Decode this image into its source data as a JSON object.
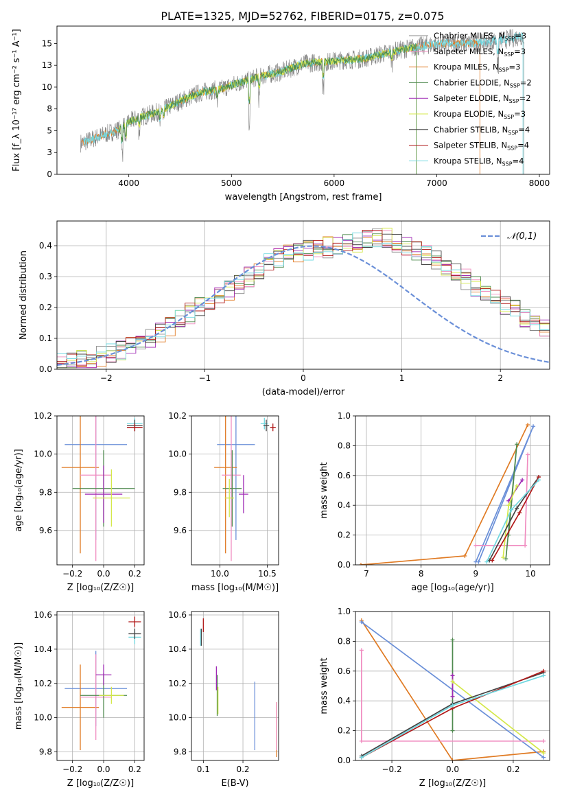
{
  "title": "PLATE=1325, MJD=52762, FIBERID=0175, z=0.075",
  "colors": {
    "Chabrier MILES": "#888888",
    "Salpeter MILES": "#f08cc0",
    "Kroupa MILES": "#e07b24",
    "Chabrier ELODIE": "#4f8a4f",
    "Salpeter ELODIE": "#a02bb5",
    "Kroupa ELODIE": "#d4e84a",
    "Chabrier STELIB": "#444444",
    "Salpeter STELIB": "#b01818",
    "Kroupa STELIB": "#70d8e0",
    "Chabrier MILES alt": "#6a8fd8"
  },
  "chart_data": [
    {
      "id": "spectrum",
      "type": "line",
      "xlabel": "wavelength [Angstrom, rest frame]",
      "ylabel": "Flux [f_λ 10⁻¹⁷ erg cm⁻² s⁻¹ A⁻¹]",
      "xlim": [
        3300,
        8100
      ],
      "ylim": [
        0,
        17
      ],
      "xticks": [
        4000,
        5000,
        6000,
        7000,
        8000
      ],
      "yticks": [
        0.0,
        2.5,
        5.0,
        7.5,
        10.0,
        12.5,
        15.0
      ],
      "legend": [
        {
          "label": "Chabrier MILES, N",
          "sub": "SSP",
          "tail": "=3",
          "color": "#888888"
        },
        {
          "label": "Salpeter MILES, N",
          "sub": "SSP",
          "tail": "=3",
          "color": "#f08cc0"
        },
        {
          "label": "Kroupa MILES, N",
          "sub": "SSP",
          "tail": "=3",
          "color": "#e07b24"
        },
        {
          "label": "Chabrier ELODIE, N",
          "sub": "SSP",
          "tail": "=2",
          "color": "#4f8a4f"
        },
        {
          "label": "Salpeter ELODIE, N",
          "sub": "SSP",
          "tail": "=2",
          "color": "#a02bb5"
        },
        {
          "label": "Kroupa ELODIE, N",
          "sub": "SSP",
          "tail": "=3",
          "color": "#d4e84a"
        },
        {
          "label": "Chabrier STELIB, N",
          "sub": "SSP",
          "tail": "=4",
          "color": "#444444"
        },
        {
          "label": "Salpeter STELIB, N",
          "sub": "SSP",
          "tail": "=4",
          "color": "#b01818"
        },
        {
          "label": "Kroupa STELIB, N",
          "sub": "SSP",
          "tail": "=4",
          "color": "#70d8e0"
        }
      ],
      "legend_position": "upper-right",
      "series": [
        {
          "color": "#888888",
          "wmin": 3530,
          "wmax": 7850,
          "noise": 1.0
        },
        {
          "color": "#e07b24",
          "wmin": 3540,
          "wmax": 7420,
          "noise": 0.4
        },
        {
          "color": "#70d8e0",
          "wmin": 3560,
          "wmax": 7840,
          "noise": 0.45
        },
        {
          "color": "#d4e84a",
          "wmin": 3900,
          "wmax": 6800,
          "noise": 0.4
        },
        {
          "color": "#4f8a4f",
          "wmin": 3900,
          "wmax": 6800,
          "noise": 0.4
        }
      ],
      "continuum": [
        [
          3550,
          3.6
        ],
        [
          3700,
          4.3
        ],
        [
          3900,
          5.1
        ],
        [
          4000,
          6.0
        ],
        [
          4100,
          6.5
        ],
        [
          4300,
          7.2
        ],
        [
          4500,
          8.4
        ],
        [
          4700,
          9.4
        ],
        [
          4900,
          9.8
        ],
        [
          5100,
          10.6
        ],
        [
          5300,
          11.3
        ],
        [
          5500,
          11.8
        ],
        [
          5700,
          12.7
        ],
        [
          5900,
          12.9
        ],
        [
          6100,
          13.1
        ],
        [
          6300,
          13.3
        ],
        [
          6500,
          13.9
        ],
        [
          6700,
          14.4
        ],
        [
          6900,
          14.8
        ],
        [
          7100,
          15.0
        ],
        [
          7300,
          15.0
        ],
        [
          7500,
          15.2
        ],
        [
          7700,
          15.5
        ],
        [
          7850,
          15.9
        ]
      ],
      "absorption_lines": [
        [
          3934,
          3.0
        ],
        [
          3969,
          2.6
        ],
        [
          4102,
          1.5
        ],
        [
          4304,
          1.6
        ],
        [
          4340,
          1.3
        ],
        [
          4861,
          1.5
        ],
        [
          5175,
          4.8
        ],
        [
          5270,
          2.5
        ],
        [
          5895,
          3.0
        ],
        [
          6563,
          1.5
        ],
        [
          7594,
          3.0
        ]
      ]
    },
    {
      "id": "residual-histogram",
      "type": "histogram",
      "xlabel": "(data-model)/error",
      "ylabel": "Normed distribution",
      "xlim": [
        -2.5,
        2.5
      ],
      "ylim": [
        0,
        0.48
      ],
      "xticks": [
        -2,
        -1,
        0,
        1,
        2
      ],
      "yticks": [
        0.0,
        0.1,
        0.2,
        0.3,
        0.4
      ],
      "bin_width": 0.1,
      "bin_start": -2.5,
      "base_values": [
        0.02,
        0.025,
        0.03,
        0.034,
        0.04,
        0.05,
        0.06,
        0.07,
        0.085,
        0.1,
        0.12,
        0.14,
        0.16,
        0.18,
        0.2,
        0.22,
        0.235,
        0.255,
        0.28,
        0.3,
        0.32,
        0.34,
        0.36,
        0.37,
        0.38,
        0.385,
        0.39,
        0.395,
        0.4,
        0.405,
        0.41,
        0.42,
        0.43,
        0.425,
        0.41,
        0.395,
        0.38,
        0.37,
        0.35,
        0.33,
        0.31,
        0.29,
        0.27,
        0.25,
        0.23,
        0.21,
        0.19,
        0.165,
        0.145,
        0.125,
        0.105,
        0.09,
        0.075,
        0.065,
        0.055,
        0.045,
        0.04,
        0.033,
        0.028,
        0.024
      ],
      "series_colors": [
        "#888888",
        "#f08cc0",
        "#e07b24",
        "#4f8a4f",
        "#a02bb5",
        "#d4e84a",
        "#444444",
        "#b01818",
        "#70d8e0"
      ],
      "gaussian": {
        "label": "𝒩(0,1)",
        "mean": 0.1,
        "sigma": 1.0,
        "color": "#6a8fd8"
      },
      "legend_position": "upper-right"
    },
    {
      "id": "age-vs-Z",
      "type": "errorbar",
      "xlabel": "Z [log₁₀(Z/Z☉)]",
      "ylabel": "age  [log₁₀(age/yr)]",
      "xlim": [
        -0.3,
        0.26
      ],
      "ylim": [
        9.42,
        10.2
      ],
      "xticks": [
        -0.2,
        0.0,
        0.2
      ],
      "yticks": [
        9.6,
        9.8,
        10.0,
        10.2
      ],
      "points": [
        {
          "x": -0.05,
          "y": 10.05,
          "xerr": 0.2,
          "yerr": 0.5,
          "color": "#6a8fd8"
        },
        {
          "x": -0.15,
          "y": 9.93,
          "xerr": 0.12,
          "yerr": 0.45,
          "color": "#e07b24"
        },
        {
          "x": -0.05,
          "y": 9.89,
          "xerr": 0.1,
          "yerr": 0.45,
          "color": "#f08cc0"
        },
        {
          "x": 0.0,
          "y": 9.82,
          "xerr": 0.2,
          "yerr": 0.2,
          "color": "#4f8a4f"
        },
        {
          "x": 0.0,
          "y": 9.79,
          "xerr": 0.12,
          "yerr": 0.15,
          "color": "#a02bb5"
        },
        {
          "x": 0.05,
          "y": 9.77,
          "xerr": 0.12,
          "yerr": 0.15,
          "color": "#d4e84a"
        },
        {
          "x": 0.2,
          "y": 10.16,
          "xerr": 0.05,
          "yerr": 0.03,
          "color": "#70d8e0"
        },
        {
          "x": 0.2,
          "y": 10.15,
          "xerr": 0.05,
          "yerr": 0.03,
          "color": "#444444"
        },
        {
          "x": 0.2,
          "y": 10.14,
          "xerr": 0.05,
          "yerr": 0.02,
          "color": "#b01818"
        }
      ]
    },
    {
      "id": "age-vs-mass",
      "type": "errorbar",
      "xlabel": "mass [log₁₀(M/M☉)]",
      "ylabel": "",
      "xlim": [
        9.7,
        10.62
      ],
      "ylim": [
        9.42,
        10.2
      ],
      "xticks": [
        10.0,
        10.5
      ],
      "yticks": [
        9.6,
        9.8,
        10.0,
        10.2
      ],
      "points": [
        {
          "x": 10.17,
          "y": 10.05,
          "xerr": 0.2,
          "yerr": 0.5,
          "color": "#6a8fd8"
        },
        {
          "x": 10.06,
          "y": 9.93,
          "xerr": 0.12,
          "yerr": 0.45,
          "color": "#e07b24"
        },
        {
          "x": 10.12,
          "y": 9.89,
          "xerr": 0.1,
          "yerr": 0.45,
          "color": "#f08cc0"
        },
        {
          "x": 10.13,
          "y": 9.82,
          "xerr": 0.1,
          "yerr": 0.2,
          "color": "#4f8a4f"
        },
        {
          "x": 10.25,
          "y": 9.79,
          "xerr": 0.05,
          "yerr": 0.1,
          "color": "#a02bb5"
        },
        {
          "x": 10.1,
          "y": 9.77,
          "xerr": 0.05,
          "yerr": 0.1,
          "color": "#d4e84a"
        },
        {
          "x": 10.47,
          "y": 10.16,
          "xerr": 0.04,
          "yerr": 0.03,
          "color": "#70d8e0"
        },
        {
          "x": 10.49,
          "y": 10.15,
          "xerr": 0.03,
          "yerr": 0.03,
          "color": "#444444"
        },
        {
          "x": 10.56,
          "y": 10.14,
          "xerr": 0.03,
          "yerr": 0.02,
          "color": "#b01818"
        }
      ]
    },
    {
      "id": "weight-vs-age",
      "type": "line",
      "xlabel": "age  [log₁₀(age/yr)]",
      "ylabel": "mass weight",
      "xlim": [
        6.8,
        10.35
      ],
      "ylim": [
        0,
        1
      ],
      "xticks": [
        7,
        8,
        9,
        10
      ],
      "yticks": [
        0.0,
        0.2,
        0.4,
        0.6,
        0.8,
        1.0
      ],
      "series": [
        {
          "color": "#e07b24",
          "points": [
            [
              6.9,
              0.0
            ],
            [
              8.8,
              0.06
            ],
            [
              9.95,
              0.94
            ]
          ]
        },
        {
          "color": "#6a8fd8",
          "points": [
            [
              9.0,
              0.02
            ],
            [
              10.05,
              0.93
            ],
            [
              9.05,
              0.02
            ]
          ]
        },
        {
          "color": "#f08cc0",
          "points": [
            [
              9.0,
              0.13
            ],
            [
              9.9,
              0.13
            ],
            [
              9.95,
              0.74
            ]
          ]
        },
        {
          "color": "#4f8a4f",
          "points": [
            [
              9.6,
              0.2
            ],
            [
              9.75,
              0.81
            ],
            [
              9.55,
              0.04
            ]
          ]
        },
        {
          "color": "#a02bb5",
          "points": [
            [
              9.6,
              0.43
            ],
            [
              9.85,
              0.57
            ]
          ]
        },
        {
          "color": "#d4e84a",
          "points": [
            [
              9.5,
              0.05
            ],
            [
              9.6,
              0.4
            ],
            [
              9.75,
              0.53
            ]
          ]
        },
        {
          "color": "#444444",
          "points": [
            [
              9.25,
              0.03
            ],
            [
              9.75,
              0.38
            ],
            [
              10.15,
              0.59
            ]
          ]
        },
        {
          "color": "#b01818",
          "points": [
            [
              9.3,
              0.03
            ],
            [
              9.8,
              0.35
            ],
            [
              10.15,
              0.59
            ]
          ]
        },
        {
          "color": "#70d8e0",
          "points": [
            [
              9.2,
              0.02
            ],
            [
              9.65,
              0.37
            ],
            [
              10.15,
              0.57
            ]
          ]
        }
      ]
    },
    {
      "id": "mass-vs-Z",
      "type": "errorbar",
      "xlabel": "Z [log₁₀(Z/Z☉)]",
      "ylabel": "mass [log₁₀(M/M☉)]",
      "xlim": [
        -0.3,
        0.26
      ],
      "ylim": [
        9.75,
        10.62
      ],
      "xticks": [
        -0.2,
        0.0,
        0.2
      ],
      "yticks": [
        9.8,
        10.0,
        10.2,
        10.4,
        10.6
      ],
      "points": [
        {
          "x": -0.05,
          "y": 10.17,
          "xerr": 0.2,
          "yerr": 0.22,
          "color": "#6a8fd8"
        },
        {
          "x": -0.15,
          "y": 10.06,
          "xerr": 0.12,
          "yerr": 0.25,
          "color": "#e07b24"
        },
        {
          "x": -0.05,
          "y": 10.12,
          "xerr": 0.1,
          "yerr": 0.25,
          "color": "#f08cc0"
        },
        {
          "x": 0.0,
          "y": 10.13,
          "xerr": 0.15,
          "yerr": 0.13,
          "color": "#4f8a4f"
        },
        {
          "x": 0.0,
          "y": 10.25,
          "xerr": 0.05,
          "yerr": 0.06,
          "color": "#a02bb5"
        },
        {
          "x": 0.05,
          "y": 10.13,
          "xerr": 0.08,
          "yerr": 0.05,
          "color": "#d4e84a"
        },
        {
          "x": 0.2,
          "y": 10.47,
          "xerr": 0.04,
          "yerr": 0.04,
          "color": "#70d8e0"
        },
        {
          "x": 0.2,
          "y": 10.49,
          "xerr": 0.04,
          "yerr": 0.03,
          "color": "#444444"
        },
        {
          "x": 0.2,
          "y": 10.56,
          "xerr": 0.04,
          "yerr": 0.03,
          "color": "#b01818"
        }
      ]
    },
    {
      "id": "mass-vs-EBV",
      "type": "errorbar",
      "xlabel": "E(B-V)",
      "ylabel": "",
      "xlim": [
        0.07,
        0.29
      ],
      "ylim": [
        9.75,
        10.62
      ],
      "xticks": [
        0.1,
        0.2
      ],
      "yticks": [
        9.8,
        10.0,
        10.2,
        10.4,
        10.6
      ],
      "points": [
        {
          "x": 0.23,
          "y": 10.01,
          "xerr": 0.0,
          "yerr": 0.2,
          "color": "#6a8fd8"
        },
        {
          "x": 0.285,
          "y": 9.93,
          "xerr": 0.0,
          "yerr": 0.16,
          "color": "#e07b24"
        },
        {
          "x": 0.285,
          "y": 9.95,
          "xerr": 0.0,
          "yerr": 0.14,
          "color": "#f08cc0"
        },
        {
          "x": 0.135,
          "y": 10.13,
          "xerr": 0.0,
          "yerr": 0.12,
          "color": "#4f8a4f"
        },
        {
          "x": 0.133,
          "y": 10.23,
          "xerr": 0.0,
          "yerr": 0.07,
          "color": "#a02bb5"
        },
        {
          "x": 0.137,
          "y": 10.1,
          "xerr": 0.0,
          "yerr": 0.08,
          "color": "#d4e84a"
        },
        {
          "x": 0.093,
          "y": 10.47,
          "xerr": 0.0,
          "yerr": 0.05,
          "color": "#70d8e0"
        },
        {
          "x": 0.095,
          "y": 10.47,
          "xerr": 0.0,
          "yerr": 0.05,
          "color": "#444444"
        },
        {
          "x": 0.1,
          "y": 10.54,
          "xerr": 0.0,
          "yerr": 0.04,
          "color": "#b01818"
        }
      ]
    },
    {
      "id": "weight-vs-Z",
      "type": "line",
      "xlabel": "Z [log₁₀(Z/Z☉)]",
      "ylabel": "mass weight",
      "xlim": [
        -0.32,
        0.32
      ],
      "ylim": [
        0,
        1
      ],
      "xticks": [
        -0.2,
        0.0,
        0.2
      ],
      "yticks": [
        0.0,
        0.2,
        0.4,
        0.6,
        0.8,
        1.0
      ],
      "series": [
        {
          "color": "#e07b24",
          "points": [
            [
              -0.3,
              0.94
            ],
            [
              0.0,
              0.0
            ],
            [
              0.3,
              0.06
            ]
          ]
        },
        {
          "color": "#6a8fd8",
          "points": [
            [
              -0.3,
              0.93
            ],
            [
              0.3,
              0.02
            ]
          ]
        },
        {
          "color": "#f08cc0",
          "points": [
            [
              -0.3,
              0.74
            ],
            [
              -0.3,
              0.13
            ],
            [
              0.3,
              0.13
            ]
          ]
        },
        {
          "color": "#4f8a4f",
          "points": [
            [
              0.0,
              0.81
            ],
            [
              0.0,
              0.2
            ]
          ]
        },
        {
          "color": "#a02bb5",
          "points": [
            [
              0.0,
              0.57
            ],
            [
              0.0,
              0.43
            ]
          ]
        },
        {
          "color": "#d4e84a",
          "points": [
            [
              0.0,
              0.53
            ],
            [
              0.3,
              0.05
            ]
          ]
        },
        {
          "color": "#444444",
          "points": [
            [
              -0.3,
              0.03
            ],
            [
              0.0,
              0.38
            ],
            [
              0.3,
              0.59
            ]
          ]
        },
        {
          "color": "#b01818",
          "points": [
            [
              -0.3,
              0.02
            ],
            [
              0.0,
              0.35
            ],
            [
              0.3,
              0.6
            ]
          ]
        },
        {
          "color": "#70d8e0",
          "points": [
            [
              -0.3,
              0.02
            ],
            [
              0.0,
              0.37
            ],
            [
              0.3,
              0.57
            ]
          ]
        }
      ]
    }
  ]
}
